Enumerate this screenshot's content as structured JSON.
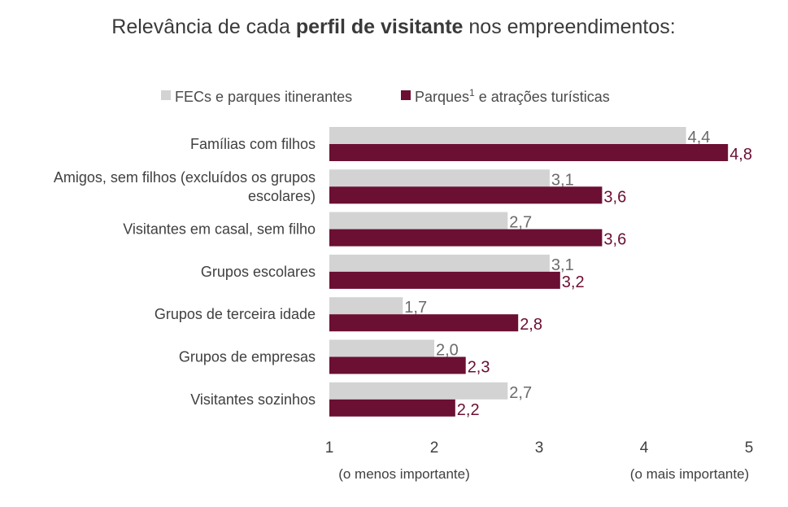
{
  "chart_data": {
    "type": "bar",
    "orientation": "horizontal",
    "title": {
      "before": "Relevância de cada ",
      "bold": "perfil de visitante",
      "after": " nos empreendimentos:"
    },
    "categories": [
      "Famílias com filhos",
      "Amigos, sem filhos (excluídos os grupos escolares)",
      "Visitantes em casal, sem filho",
      "Grupos escolares",
      "Grupos de terceira idade",
      "Grupos de empresas",
      "Visitantes sozinhos"
    ],
    "category_lines": [
      [
        "Famílias com filhos"
      ],
      [
        "Amigos, sem filhos (excluídos os grupos",
        "escolares)"
      ],
      [
        "Visitantes em casal, sem filho"
      ],
      [
        "Grupos escolares"
      ],
      [
        "Grupos de terceira idade"
      ],
      [
        "Grupos de empresas"
      ],
      [
        "Visitantes sozinhos"
      ]
    ],
    "series": [
      {
        "name": "FECs e parques itinerantes",
        "color": "#d3d3d3",
        "label_color": "#6b6b6b",
        "values": [
          4.4,
          3.1,
          2.7,
          3.1,
          1.7,
          2.0,
          2.7
        ],
        "labels": [
          "4,4",
          "3,1",
          "2,7",
          "3,1",
          "1,7",
          "2,0",
          "2,7"
        ]
      },
      {
        "name": "Parques¹ e atrações turísticas",
        "name_main": "Parques",
        "name_sup": "1",
        "name_rest": " e atrações turísticas",
        "color": "#6b0f33",
        "label_color": "#6b0f33",
        "values": [
          4.8,
          3.6,
          3.6,
          3.2,
          2.8,
          2.3,
          2.2
        ],
        "labels": [
          "4,8",
          "3,6",
          "3,6",
          "3,2",
          "2,8",
          "2,3",
          "2,2"
        ]
      }
    ],
    "xlim": [
      1,
      5
    ],
    "xticks": [
      1,
      2,
      3,
      4,
      5
    ],
    "xtick_labels": [
      "1",
      "2",
      "3",
      "4",
      "5"
    ],
    "x_min_note": "(o menos importante)",
    "x_max_note": "(o mais importante)",
    "legend_position": "top",
    "grid": false
  }
}
